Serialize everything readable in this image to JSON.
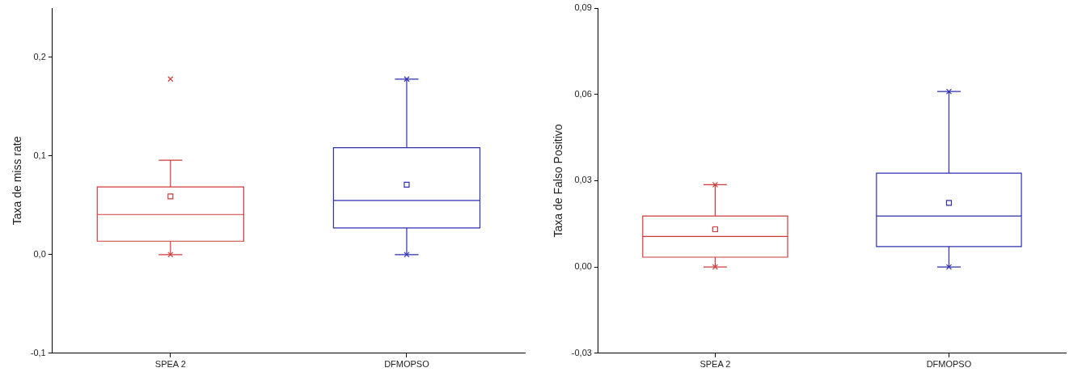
{
  "chart_data": [
    {
      "type": "box",
      "ylabel": "Taxa de miss rate",
      "categories": [
        "SPEA 2",
        "DFMOPSO"
      ],
      "colors": [
        "#d03a3a",
        "#2f2fb0"
      ],
      "boxes": [
        {
          "low": 0.0,
          "q1": 0.0136,
          "median": 0.0407,
          "q3": 0.0686,
          "high": 0.0958,
          "mean": 0.059,
          "outliers": [
            0.178,
            0.0
          ]
        },
        {
          "low": 0.0,
          "q1": 0.027,
          "median": 0.055,
          "q3": 0.1085,
          "high": 0.178,
          "mean": 0.071,
          "outliers": [
            0.178,
            0.0
          ]
        }
      ],
      "ylim": [
        -0.1,
        0.25
      ],
      "yticks": [
        {
          "value": -0.1,
          "label": "-0,1"
        },
        {
          "value": 0,
          "label": "0,0"
        },
        {
          "value": 0.1,
          "label": "0,1"
        },
        {
          "value": 0.2,
          "label": "0,2"
        }
      ]
    },
    {
      "type": "box",
      "ylabel": "Taxa de Falso Positivo",
      "categories": [
        "SPEA 2",
        "DFMOPSO"
      ],
      "colors": [
        "#d03a3a",
        "#2f2fb0"
      ],
      "boxes": [
        {
          "low": 0.0,
          "q1": 0.0034,
          "median": 0.0106,
          "q3": 0.0177,
          "high": 0.0286,
          "mean": 0.0131,
          "outliers": [
            0.0286,
            0.0
          ]
        },
        {
          "low": 0.0,
          "q1": 0.0071,
          "median": 0.0177,
          "q3": 0.0326,
          "high": 0.061,
          "mean": 0.0223,
          "outliers": [
            0.061,
            0.0
          ]
        }
      ],
      "ylim": [
        -0.03,
        0.09
      ],
      "yticks": [
        {
          "value": -0.03,
          "label": "-0,03"
        },
        {
          "value": 0,
          "label": "0,00"
        },
        {
          "value": 0.03,
          "label": "0,03"
        },
        {
          "value": 0.06,
          "label": "0,06"
        },
        {
          "value": 0.09,
          "label": "0,09"
        }
      ]
    }
  ]
}
